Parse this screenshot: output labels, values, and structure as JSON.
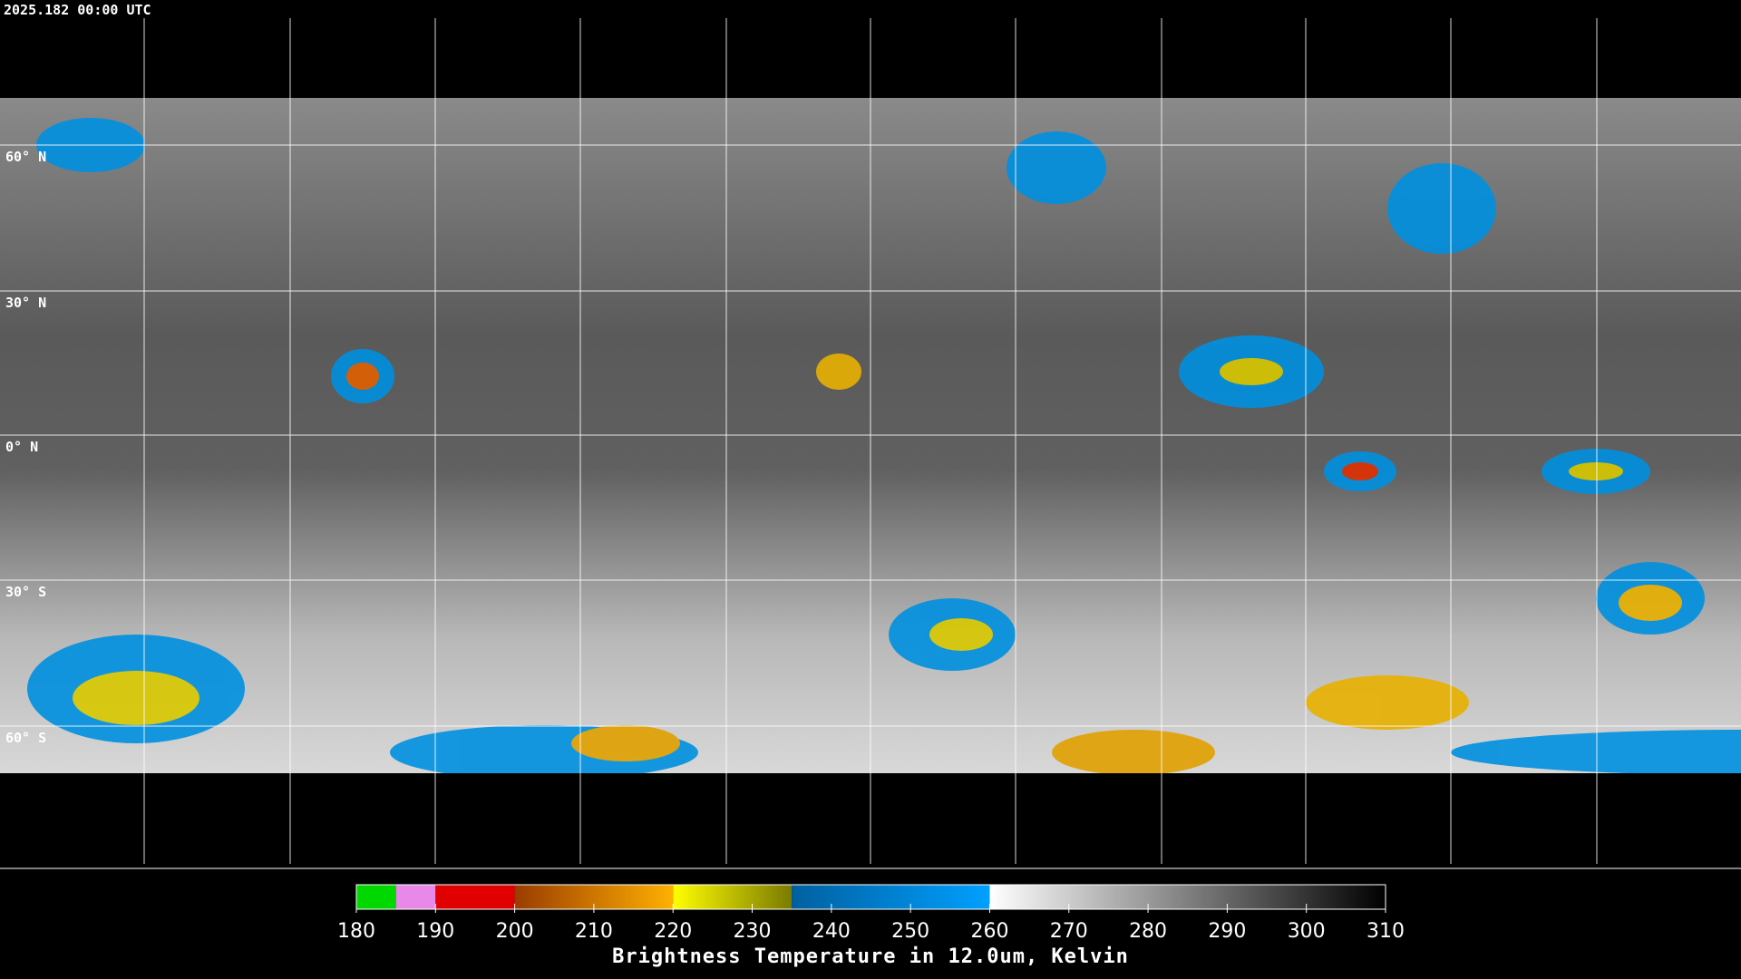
{
  "header": {
    "timestamp": "2025.182 00:00 UTC"
  },
  "map": {
    "latitude_labels": [
      "60° N",
      "30° N",
      "0° N",
      "30° S",
      "60° S"
    ]
  },
  "colorbar": {
    "title": "Brightness Temperature in 12.0um, Kelvin",
    "range": [
      180,
      310
    ],
    "ticks": [
      180,
      190,
      200,
      210,
      220,
      230,
      240,
      250,
      260,
      270,
      280,
      290,
      300,
      310
    ],
    "segments": [
      {
        "from": 180,
        "to": 185,
        "colors": [
          "#00d800",
          "#00d800"
        ]
      },
      {
        "from": 185,
        "to": 190,
        "colors": [
          "#e888e8",
          "#e888e8"
        ]
      },
      {
        "from": 190,
        "to": 200,
        "colors": [
          "#e00000",
          "#e00000"
        ]
      },
      {
        "from": 200,
        "to": 220,
        "colors": [
          "#9a3c00",
          "#ffb000"
        ]
      },
      {
        "from": 220,
        "to": 235,
        "colors": [
          "#ffff00",
          "#7a7a00"
        ]
      },
      {
        "from": 235,
        "to": 260,
        "colors": [
          "#0060a0",
          "#00a0ff"
        ]
      },
      {
        "from": 260,
        "to": 310,
        "colors": [
          "#ffffff",
          "#000000"
        ]
      }
    ]
  }
}
